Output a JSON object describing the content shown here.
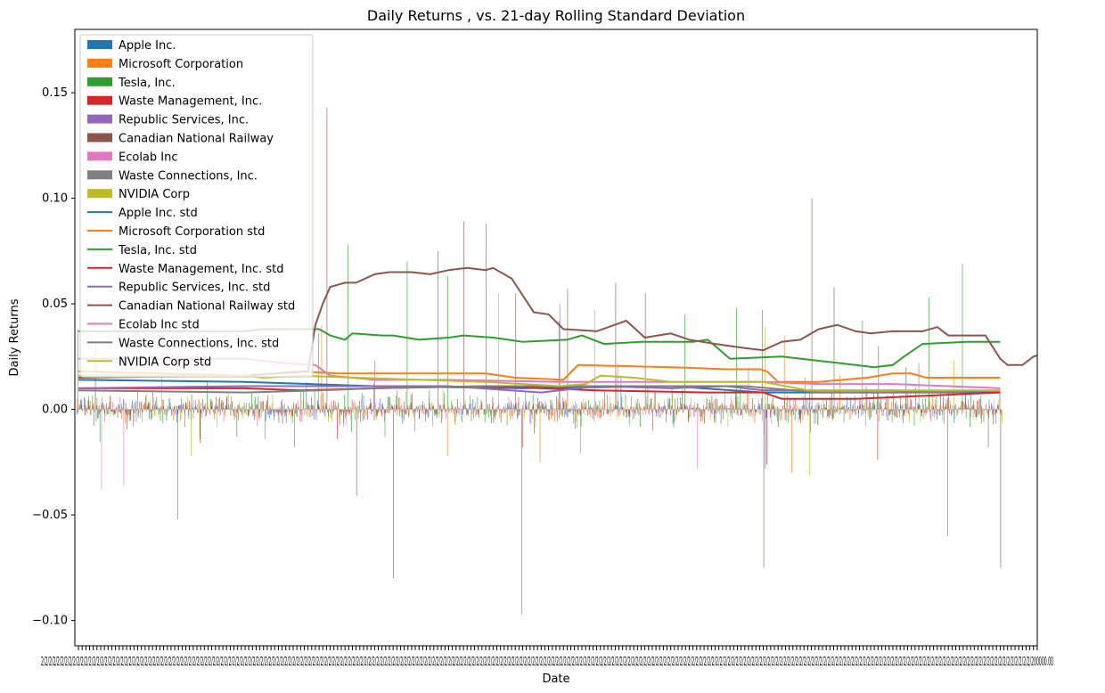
{
  "chart_data": {
    "type": "bar",
    "title": "Daily Returns , vs. 21-day Rolling Standard Deviation",
    "xlabel": "Date",
    "ylabel": "Daily Returns",
    "ylim": [
      -0.112,
      0.18
    ],
    "yticks": [
      -0.1,
      -0.05,
      0.0,
      0.05,
      0.1,
      0.15
    ],
    "ytick_labels": [
      "−0.10",
      "−0.05",
      "0.00",
      "0.05",
      "0.10",
      "0.15"
    ],
    "x_tick_labels_overlapping": "2/2/2/2/2/2/2/2/2/2/2/2/2/2/2/2/2/2/2/2/2/2/2/2/2/2/2/2/2/2/2/2/2/2/2/2/2/2/2/2/2/2/2/2/2/2/2/2/2/2/2/2/2/2/2/2/2/2/2/2/2/2/2/2/2/2/2/2/2/2/2/2/2/2/2/2/2/2/2/2/2/2/2/2/2/2/2/2/2/2/2/2/2/2/2/2/2/2/2/2/2/2/2/2/2/2/2/2/2/2/2/2/2/2/2/2/2/2/2/2/2/2/2/2/2/2/2/2/2/2/2/2/2/2/2/2/2/2/2/2/2/2/2/2/2/2/2/2/2/2/2/2/2/2/2/2/2/2/2/2/2/2/2/2/2/2/2/2/2/2/2/2/2/2/2/2/2/2/2/2/2/2/2/2/2/2/2/2/2/2/2/2/2/2/2/2/2/2/2/2/2/2/2/2/2/2/2/2/2/2/2/2/2/2/2/2/2/2/2/2/2/2/2/2/2/2/2/2/2/2/2/2/2/2/2/2/2/2/2/2/2/2/2/2/2/2/2/2/200000.00",
    "legend_position": "upper-left",
    "grid": false,
    "n_days": 250,
    "series": [
      {
        "name": "Apple Inc.",
        "color": "#1f77b4",
        "amp": 0.012,
        "seed": 11,
        "spikes": [
          [
            5,
            0.03
          ],
          [
            62,
            0.013
          ],
          [
            147,
            0.016
          ],
          [
            186,
            -0.028
          ],
          [
            224,
            0.02
          ]
        ],
        "std": [
          [
            0,
            0.014
          ],
          [
            45,
            0.013
          ],
          [
            80,
            0.011
          ],
          [
            120,
            0.01
          ],
          [
            160,
            0.011
          ],
          [
            185,
            0.008
          ],
          [
            215,
            0.008
          ],
          [
            249,
            0.008
          ]
        ]
      },
      {
        "name": "Microsoft Corporation",
        "color": "#ff7f0e",
        "amp": 0.013,
        "seed": 22,
        "spikes": [
          [
            66,
            0.04
          ],
          [
            100,
            -0.022
          ],
          [
            125,
            -0.025
          ],
          [
            136,
            -0.021
          ],
          [
            146,
            0.022
          ],
          [
            191,
            0.035
          ],
          [
            193,
            -0.03
          ],
          [
            206,
            0.016
          ]
        ],
        "std": [
          [
            0,
            0.018
          ],
          [
            45,
            0.016
          ],
          [
            60,
            0.018
          ],
          [
            70,
            0.017
          ],
          [
            90,
            0.017
          ],
          [
            110,
            0.017
          ],
          [
            118,
            0.015
          ],
          [
            131,
            0.014
          ],
          [
            135,
            0.021
          ],
          [
            160,
            0.02
          ],
          [
            175,
            0.019
          ],
          [
            184,
            0.019
          ],
          [
            186,
            0.018
          ],
          [
            189,
            0.013
          ],
          [
            200,
            0.013
          ],
          [
            213,
            0.015
          ],
          [
            220,
            0.017
          ],
          [
            225,
            0.017
          ],
          [
            229,
            0.015
          ],
          [
            243,
            0.015
          ],
          [
            249,
            0.015
          ]
        ]
      },
      {
        "name": "Tesla, Inc.",
        "color": "#2ca02c",
        "amp": 0.018,
        "seed": 33,
        "spikes": [
          [
            0,
            0.038
          ],
          [
            27,
            -0.052
          ],
          [
            65,
            0.036
          ],
          [
            73,
            0.078
          ],
          [
            89,
            0.07
          ],
          [
            100,
            0.063
          ],
          [
            120,
            -0.097
          ],
          [
            130,
            0.042
          ],
          [
            164,
            0.045
          ],
          [
            178,
            0.048
          ],
          [
            185,
            0.047
          ],
          [
            212,
            0.042
          ],
          [
            230,
            0.053
          ],
          [
            235,
            -0.06
          ],
          [
            239,
            0.069
          ],
          [
            246,
            -0.018
          ]
        ],
        "std": [
          [
            0,
            0.037
          ],
          [
            45,
            0.037
          ],
          [
            50,
            0.038
          ],
          [
            60,
            0.038
          ],
          [
            65,
            0.038
          ],
          [
            68,
            0.035
          ],
          [
            72,
            0.033
          ],
          [
            74,
            0.036
          ],
          [
            82,
            0.035
          ],
          [
            85,
            0.035
          ],
          [
            92,
            0.033
          ],
          [
            100,
            0.034
          ],
          [
            104,
            0.035
          ],
          [
            112,
            0.034
          ],
          [
            120,
            0.032
          ],
          [
            132,
            0.033
          ],
          [
            136,
            0.035
          ],
          [
            142,
            0.031
          ],
          [
            152,
            0.032
          ],
          [
            166,
            0.032
          ],
          [
            170,
            0.033
          ],
          [
            176,
            0.024
          ],
          [
            190,
            0.025
          ],
          [
            205,
            0.022
          ],
          [
            215,
            0.02
          ],
          [
            220,
            0.021
          ],
          [
            223,
            0.025
          ],
          [
            228,
            0.031
          ],
          [
            240,
            0.032
          ],
          [
            249,
            0.032
          ]
        ]
      },
      {
        "name": "Waste Management, Inc.",
        "color": "#d62728",
        "amp": 0.009,
        "seed": 44,
        "spikes": [
          [
            33,
            -0.016
          ],
          [
            70,
            -0.014
          ],
          [
            120,
            -0.018
          ],
          [
            186,
            -0.026
          ],
          [
            216,
            -0.024
          ],
          [
            249,
            0.008
          ]
        ],
        "std": [
          [
            0,
            0.01
          ],
          [
            45,
            0.01
          ],
          [
            60,
            0.009
          ],
          [
            80,
            0.01
          ],
          [
            110,
            0.011
          ],
          [
            140,
            0.009
          ],
          [
            170,
            0.008
          ],
          [
            185,
            0.008
          ],
          [
            190,
            0.005
          ],
          [
            210,
            0.005
          ],
          [
            249,
            0.008
          ]
        ]
      },
      {
        "name": "Republic Services, Inc.",
        "color": "#9467bd",
        "amp": 0.009,
        "seed": 55,
        "spikes": [
          [
            16,
            0.01
          ],
          [
            80,
            0.023
          ],
          [
            130,
            0.05
          ],
          [
            181,
            0.02
          ],
          [
            227,
            0.022
          ]
        ],
        "std": [
          [
            0,
            0.01
          ],
          [
            45,
            0.011
          ],
          [
            65,
            0.011
          ],
          [
            80,
            0.011
          ],
          [
            100,
            0.011
          ],
          [
            125,
            0.008
          ],
          [
            140,
            0.011
          ],
          [
            160,
            0.01
          ],
          [
            175,
            0.011
          ],
          [
            185,
            0.009
          ],
          [
            200,
            0.009
          ],
          [
            220,
            0.009
          ],
          [
            235,
            0.008
          ],
          [
            249,
            0.009
          ]
        ]
      },
      {
        "name": "Canadian National Railway",
        "color": "#8c564b",
        "amp": 0.014,
        "seed": 66,
        "spikes": [
          [
            67,
            0.143
          ],
          [
            75,
            -0.041
          ],
          [
            85,
            -0.08
          ],
          [
            97,
            0.075
          ],
          [
            104,
            0.089
          ],
          [
            110,
            0.088
          ],
          [
            118,
            0.055
          ],
          [
            132,
            0.057
          ],
          [
            145,
            0.06
          ],
          [
            153,
            0.055
          ],
          [
            185,
            -0.075
          ],
          [
            198,
            0.1
          ],
          [
            204,
            0.058
          ],
          [
            216,
            0.03
          ],
          [
            249,
            -0.075
          ],
          [
            251,
            0.034
          ]
        ],
        "std": [
          [
            0,
            0.015
          ],
          [
            45,
            0.016
          ],
          [
            62,
            0.018
          ],
          [
            64,
            0.04
          ],
          [
            66,
            0.05
          ],
          [
            68,
            0.058
          ],
          [
            72,
            0.06
          ],
          [
            75,
            0.06
          ],
          [
            80,
            0.064
          ],
          [
            84,
            0.065
          ],
          [
            90,
            0.065
          ],
          [
            95,
            0.064
          ],
          [
            100,
            0.066
          ],
          [
            105,
            0.067
          ],
          [
            110,
            0.066
          ],
          [
            112,
            0.067
          ],
          [
            117,
            0.062
          ],
          [
            123,
            0.046
          ],
          [
            127,
            0.045
          ],
          [
            131,
            0.038
          ],
          [
            140,
            0.037
          ],
          [
            148,
            0.042
          ],
          [
            153,
            0.034
          ],
          [
            160,
            0.036
          ],
          [
            165,
            0.033
          ],
          [
            172,
            0.031
          ],
          [
            180,
            0.029
          ],
          [
            185,
            0.028
          ],
          [
            190,
            0.032
          ],
          [
            195,
            0.033
          ],
          [
            200,
            0.038
          ],
          [
            205,
            0.04
          ],
          [
            210,
            0.037
          ],
          [
            214,
            0.036
          ],
          [
            220,
            0.037
          ],
          [
            228,
            0.037
          ],
          [
            232,
            0.039
          ],
          [
            235,
            0.035
          ],
          [
            240,
            0.035
          ],
          [
            245,
            0.035
          ],
          [
            249,
            0.024
          ],
          [
            251,
            0.021
          ],
          [
            255,
            0.021
          ],
          [
            258,
            0.025
          ],
          [
            262,
            0.027
          ]
        ]
      },
      {
        "name": "Ecolab Inc",
        "color": "#e377c2",
        "amp": 0.011,
        "seed": 77,
        "spikes": [
          [
            6,
            -0.038
          ],
          [
            12,
            -0.036
          ],
          [
            145,
            0.017
          ],
          [
            167,
            -0.028
          ],
          [
            185,
            -0.012
          ]
        ],
        "std": [
          [
            0,
            0.024
          ],
          [
            45,
            0.024
          ],
          [
            55,
            0.022
          ],
          [
            64,
            0.021
          ],
          [
            68,
            0.016
          ],
          [
            80,
            0.014
          ],
          [
            100,
            0.014
          ],
          [
            130,
            0.013
          ],
          [
            160,
            0.013
          ],
          [
            175,
            0.013
          ],
          [
            185,
            0.013
          ],
          [
            200,
            0.012
          ],
          [
            220,
            0.012
          ],
          [
            235,
            0.011
          ],
          [
            249,
            0.01
          ]
        ]
      },
      {
        "name": "Waste Connections, Inc.",
        "color": "#7f7f7f",
        "amp": 0.008,
        "seed": 88,
        "spikes": [
          [
            50,
            -0.014
          ],
          [
            58,
            -0.018
          ],
          [
            160,
            0.011
          ],
          [
            196,
            0.015
          ]
        ],
        "std": [
          [
            0,
            0.009
          ],
          [
            45,
            0.008
          ],
          [
            65,
            0.009
          ],
          [
            80,
            0.01
          ],
          [
            110,
            0.011
          ],
          [
            150,
            0.011
          ],
          [
            180,
            0.011
          ],
          [
            200,
            0.008
          ],
          [
            230,
            0.008
          ],
          [
            249,
            0.009
          ]
        ]
      },
      {
        "name": "NVIDIA Corp",
        "color": "#bcbd22",
        "amp": 0.012,
        "seed": 99,
        "spikes": [
          [
            22,
            0.04
          ],
          [
            30,
            -0.022
          ],
          [
            113,
            0.055
          ],
          [
            139,
            0.047
          ],
          [
            185,
            0.039
          ],
          [
            197,
            -0.031
          ],
          [
            236,
            0.023
          ]
        ],
        "std": [
          [
            0,
            0.016
          ],
          [
            45,
            0.016
          ],
          [
            50,
            0.015
          ],
          [
            60,
            0.016
          ],
          [
            75,
            0.015
          ],
          [
            110,
            0.013
          ],
          [
            130,
            0.011
          ],
          [
            137,
            0.012
          ],
          [
            141,
            0.016
          ],
          [
            150,
            0.015
          ],
          [
            160,
            0.013
          ],
          [
            185,
            0.013
          ],
          [
            197,
            0.009
          ],
          [
            215,
            0.009
          ],
          [
            249,
            0.009
          ]
        ]
      }
    ]
  }
}
